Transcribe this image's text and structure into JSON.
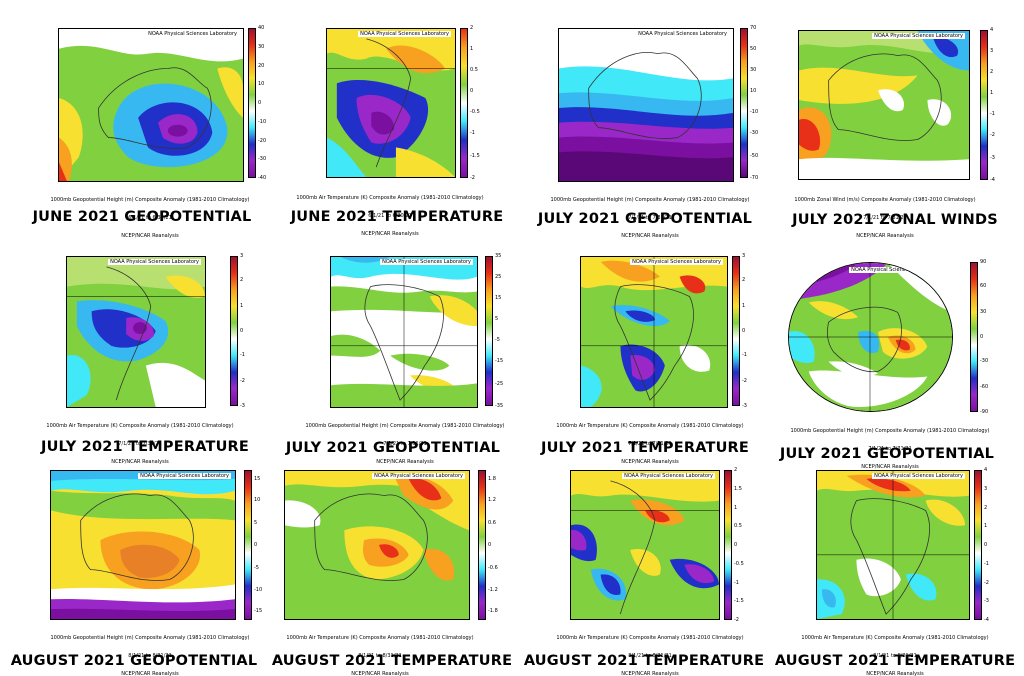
{
  "lab_credit": "NOAA Physical Sciences Laboratory",
  "reanalysis": "NCEP/NCAR Reanalysis",
  "panels": [
    {
      "title": "JUNE 2021 GEOPOTENTIAL",
      "var": "1000mb Geopotential Height (m) Composite Anomaly (1981-2010 Climatology)",
      "dates": "6/1/21 to 6/30/21",
      "ticks": [
        "40",
        "30",
        "20",
        "10",
        "0",
        "-10",
        "-20",
        "-30",
        "-40"
      ],
      "region": "australia"
    },
    {
      "title": "JUNE 2021 TEMPERATURE",
      "var": "1000mb Air Temperature (K) Composite Anomaly (1981-2010 Climatology)",
      "dates": "6/1/21 to 6/30/21",
      "ticks": [
        "2",
        "1",
        "0.5",
        "0",
        "-0.5",
        "-1",
        "-1.5",
        "-2"
      ],
      "region": "southamerica"
    },
    {
      "title": "JULY 2021 GEOPOTENTIAL",
      "var": "1000mb Geopotential Height (m) Composite Anomaly (1981-2010 Climatology)",
      "dates": "7/1/21 to 7/31/21",
      "ticks": [
        "70",
        "50",
        "30",
        "10",
        "-10",
        "-30",
        "-50",
        "-70"
      ],
      "region": "australia"
    },
    {
      "title": "JULY 2021 ZONAL WINDS",
      "var": "1000mb Zonal Wind (m/s) Composite Anomaly (1981-2010 Climatology)",
      "dates": "7/1/21 to 7/31/21",
      "ticks": [
        "4",
        "3",
        "2",
        "1",
        "-1",
        "-2",
        "-3",
        "-4"
      ],
      "region": "australia"
    },
    {
      "title": "JULY 2021 TEMPERATURE",
      "var": "1000mb Air Temperature (K) Composite Anomaly (1981-2010 Climatology)",
      "dates": "7/1/21 to 7/31/21",
      "ticks": [
        "3",
        "2",
        "1",
        "0",
        "-1",
        "-2",
        "-3"
      ],
      "region": "southamerica"
    },
    {
      "title": "JULY 2021 GEOPOTENTIAL",
      "var": "1000mb Geopotential Height (m) Composite Anomaly (1981-2010 Climatology)",
      "dates": "7/1/21 to 7/31/21",
      "ticks": [
        "35",
        "25",
        "15",
        "5",
        "-5",
        "-15",
        "-25",
        "-35"
      ],
      "region": "africa"
    },
    {
      "title": "JULY 2021 TEMPERATURE",
      "var": "1000mb Air Temperature (K) Composite Anomaly (1981-2010 Climatology)",
      "dates": "7/1/21 to 7/31/21",
      "ticks": [
        "3",
        "2",
        "1",
        "0",
        "-1",
        "-2",
        "-3"
      ],
      "region": "africa"
    },
    {
      "title": "JULY 2021 GEOPOTENTIAL",
      "var": "1000mb Geopotential Height (m) Composite Anomaly (1981-2010 Climatology)",
      "dates": "7/1/21 to 7/31/21",
      "ticks": [
        "90",
        "60",
        "30",
        "0",
        "-30",
        "-60",
        "-90"
      ],
      "region": "globe"
    },
    {
      "title": "AUGUST 2021 GEOPOTENTIAL",
      "var": "1000mb Geopotential Height (m) Composite Anomaly (1981-2010 Climatology)",
      "dates": "8/1/21 to 8/31/21",
      "ticks": [
        "15",
        "10",
        "5",
        "0",
        "-5",
        "-10",
        "-15"
      ],
      "region": "australia"
    },
    {
      "title": "AUGUST 2021 TEMPERATURE",
      "var": "1000mb Air Temperature (K) Composite Anomaly (1981-2010 Climatology)",
      "dates": "8/1/21 to 8/31/21",
      "ticks": [
        "1.8",
        "1.2",
        "0.6",
        "0",
        "-0.6",
        "-1.2",
        "-1.8"
      ],
      "region": "australia"
    },
    {
      "title": "AUGUST 2021 TEMPERATURE",
      "var": "1000mb Air Temperature (K) Composite Anomaly (1981-2010 Climatology)",
      "dates": "8/1/21 to 8/31/21",
      "ticks": [
        "2",
        "1.5",
        "1",
        "0.5",
        "0",
        "-0.5",
        "-1",
        "-1.5",
        "-2"
      ],
      "region": "southamerica"
    },
    {
      "title": "AUGUST 2021 TEMPERATURE",
      "var": "1000mb Air Temperature (K) Composite Anomaly (1981-2010 Climatology)",
      "dates": "8/1/21 to 8/31/21",
      "ticks": [
        "4",
        "3",
        "2",
        "1",
        "0",
        "-1",
        "-2",
        "-3",
        "-4"
      ],
      "region": "africa"
    }
  ],
  "colors": {
    "purple": "#7a0fa0",
    "violet": "#9a28c8",
    "blue": "#2030c8",
    "lightblue": "#38b8f0",
    "cyan": "#40e8f8",
    "white": "#ffffff",
    "green": "#80d040",
    "lightgreen": "#b8e070",
    "yellow": "#f8e030",
    "orange": "#f8a020",
    "red": "#e83018",
    "darkred": "#a01030"
  }
}
